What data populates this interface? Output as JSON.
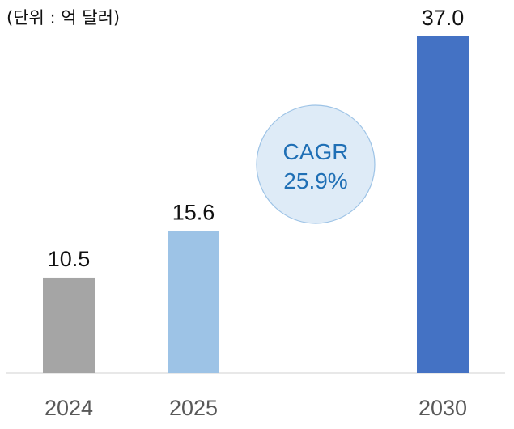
{
  "unit_label": "(단위 : 억 달러)",
  "cagr": {
    "label": "CAGR",
    "value": "25.9%"
  },
  "colors": {
    "bar_2024": "#a5a5a5",
    "bar_2025": "#9dc3e6",
    "bar_2030": "#4472c4",
    "cagr_fill": "#deebf7",
    "cagr_stroke": "#9dc3e6",
    "cagr_text": "#1f6fb5",
    "axis": "#d9d9d9",
    "value_text": "#111111",
    "category_text": "#595959"
  },
  "chart_data": {
    "type": "bar",
    "categories": [
      "2024",
      "2025",
      "2030"
    ],
    "values": [
      10.5,
      15.6,
      37.0
    ],
    "value_labels": [
      "10.5",
      "15.6",
      "37.0"
    ],
    "ylim": [
      0,
      40
    ],
    "grid": false,
    "legend": "none"
  }
}
